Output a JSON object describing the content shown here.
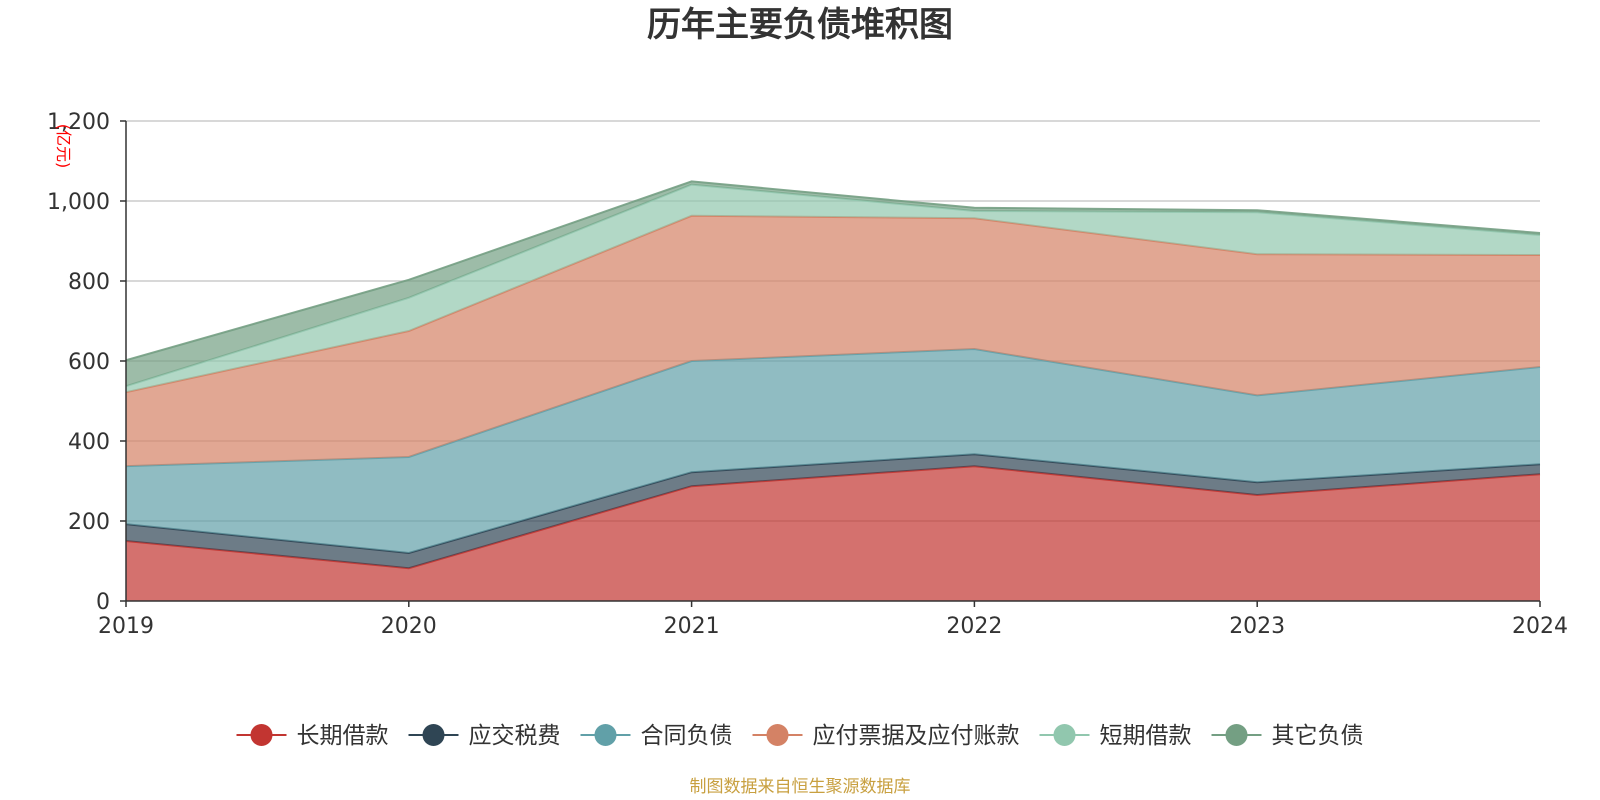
{
  "chart_data": {
    "type": "area",
    "stacked": true,
    "title": "历年主要负债堆积图",
    "unit_label": "(亿元)",
    "x": [
      "2019",
      "2020",
      "2021",
      "2022",
      "2023",
      "2024"
    ],
    "ylim": [
      0,
      1200
    ],
    "yticks": [
      0,
      200,
      400,
      600,
      800,
      1000,
      1200
    ],
    "ytick_labels": [
      "0",
      "200",
      "400",
      "600",
      "800",
      "1,000",
      "1,200"
    ],
    "grid": true,
    "legend_position": "bottom",
    "series": [
      {
        "name": "长期借款",
        "color": "#c23531",
        "values": [
          150,
          82,
          287,
          337,
          265,
          317
        ]
      },
      {
        "name": "应交税费",
        "color": "#2f4554",
        "values": [
          42,
          38,
          35,
          30,
          32,
          25
        ]
      },
      {
        "name": "合同负债",
        "color": "#61a0a8",
        "values": [
          145,
          240,
          278,
          263,
          217,
          243
        ]
      },
      {
        "name": "应付票据及应付账款",
        "color": "#d48265",
        "values": [
          185,
          315,
          363,
          327,
          353,
          280
        ]
      },
      {
        "name": "短期借款",
        "color": "#91c7ae",
        "values": [
          15,
          83,
          78,
          18,
          105,
          50
        ]
      },
      {
        "name": "其它负债",
        "color": "#749f83",
        "values": [
          65,
          45,
          8,
          8,
          5,
          5
        ]
      }
    ]
  },
  "source_note": "制图数据来自恒生聚源数据库"
}
